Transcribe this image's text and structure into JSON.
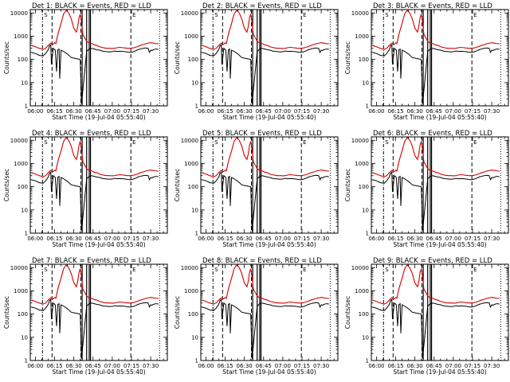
{
  "chart_data": {
    "type": "line",
    "figure_note": "3x3 grid of detector light curves",
    "title_template": "Det {n}: BLACK = Events, RED = LLD",
    "title_prefix": "Det ",
    "title_suffix": ": BLACK = Events, RED = LLD",
    "xlabel": "Start Time (19-Jul-04 05:55:40)",
    "ylabel": "Counts/sec",
    "xscale": "linear",
    "yscale": "log",
    "x_unit": "minutes after 06:00",
    "xlim": [
      -4,
      103
    ],
    "ylim": [
      1,
      14000
    ],
    "x_ticks": [
      0,
      15,
      30,
      45,
      60,
      75,
      90
    ],
    "x_tick_labels": [
      "06:00",
      "06:15",
      "06:30",
      "06:45",
      "07:00",
      "07:15",
      "07:30"
    ],
    "y_ticks": [
      1,
      10,
      100,
      1000,
      10000
    ],
    "y_tick_labels": [
      "1",
      "10",
      "100",
      "1000",
      "10000"
    ],
    "vertical_markers": [
      {
        "x": 5.5,
        "style": "dash-dot",
        "label": "S"
      },
      {
        "x": 13,
        "style": "dashed",
        "label": ""
      },
      {
        "x": 35.5,
        "style": "dashed",
        "label": ""
      },
      {
        "x": 74.5,
        "style": "dashed",
        "label": "E"
      },
      {
        "x": 97,
        "style": "dotted",
        "label": ""
      }
    ],
    "gap_regions": [
      [
        36.5,
        40
      ],
      [
        42,
        43
      ]
    ],
    "colors": {
      "events": "#000000",
      "lld": "#d40000",
      "axes": "#000000",
      "background": "#ffffff"
    },
    "panels": [
      {
        "detector": "1"
      },
      {
        "detector": "2"
      },
      {
        "detector": "3"
      },
      {
        "detector": "4"
      },
      {
        "detector": "5"
      },
      {
        "detector": "6"
      },
      {
        "detector": "7"
      },
      {
        "detector": "8"
      },
      {
        "detector": "9"
      }
    ],
    "series": [
      {
        "name": "Events",
        "color": "#000000",
        "x": [
          -3,
          0,
          3,
          6,
          8,
          10,
          11,
          12,
          12.5,
          14,
          15.5,
          16.5,
          17.5,
          18.5,
          19,
          20,
          22,
          25,
          28,
          31,
          33,
          35,
          36,
          40,
          42,
          44,
          46,
          48,
          50,
          52,
          54,
          56,
          58,
          60,
          62,
          64,
          66,
          68,
          70,
          72,
          74,
          76,
          78,
          80,
          82,
          84,
          86,
          88,
          89,
          90,
          91,
          92,
          94,
          96
        ],
        "y": [
          200,
          180,
          150,
          140,
          180,
          260,
          380,
          420,
          60,
          300,
          250,
          30,
          260,
          280,
          15,
          250,
          220,
          170,
          120,
          110,
          105,
          100,
          1.2,
          220,
          280,
          300,
          280,
          260,
          250,
          230,
          220,
          215,
          210,
          215,
          230,
          220,
          225,
          220,
          215,
          205,
          200,
          210,
          230,
          260,
          280,
          300,
          310,
          300,
          200,
          250,
          240,
          260,
          280,
          270
        ]
      },
      {
        "name": "LLD",
        "color": "#d40000",
        "x": [
          -3,
          0,
          3,
          6,
          8,
          10,
          11,
          12,
          13,
          14,
          15,
          16,
          17,
          18,
          20,
          22,
          24,
          26,
          28,
          30,
          32,
          33,
          34,
          35,
          36,
          37,
          40,
          42,
          44,
          46,
          48,
          50,
          52,
          54,
          56,
          58,
          60,
          62,
          64,
          66,
          68,
          70,
          72,
          74,
          76,
          78,
          80,
          82,
          84,
          86,
          88,
          90,
          92,
          94,
          96
        ],
        "y": [
          400,
          350,
          300,
          270,
          300,
          400,
          450,
          500,
          460,
          450,
          520,
          480,
          900,
          1500,
          3500,
          9000,
          13000,
          10000,
          5500,
          2200,
          1500,
          2500,
          6000,
          9000,
          4000,
          1200,
          600,
          500,
          480,
          420,
          400,
          350,
          330,
          310,
          300,
          300,
          295,
          300,
          320,
          330,
          320,
          310,
          300,
          300,
          310,
          330,
          360,
          400,
          430,
          470,
          500,
          520,
          500,
          480,
          470
        ]
      }
    ]
  }
}
